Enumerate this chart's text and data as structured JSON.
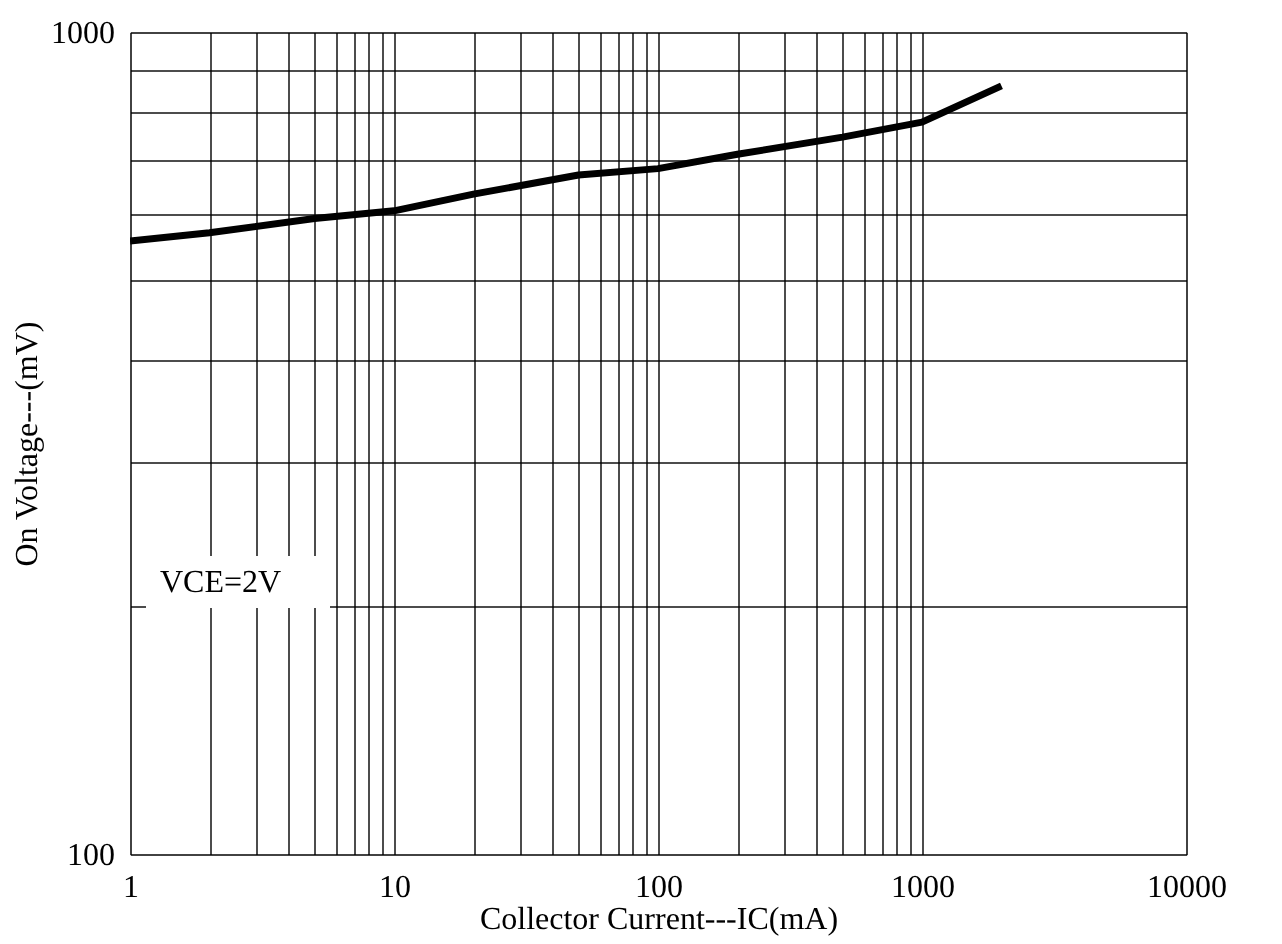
{
  "chart_data": {
    "type": "line",
    "xlabel": "Collector Current---IC(mA)",
    "ylabel": "On Voltage---(mV)",
    "log": "xy",
    "grid": true,
    "marker": "none",
    "line_style": "solid",
    "x": [
      1,
      2,
      5,
      10,
      20,
      50,
      100,
      200,
      500,
      1000,
      2000
    ],
    "series": [
      {
        "color": "#000000",
        "values": [
          557,
          570,
          593,
          606,
          635,
          670,
          682,
          710,
          745,
          777,
          860
        ]
      }
    ],
    "xlim": [
      1,
      10000
    ],
    "ylim": [
      100,
      1000
    ],
    "xticks": [
      1,
      {
        "value": 2,
        "label": null
      },
      {
        "value": 3,
        "label": null
      },
      {
        "value": 4,
        "label": null
      },
      {
        "value": 5,
        "label": null
      },
      {
        "value": 6,
        "label": null
      },
      {
        "value": 7,
        "label": null
      },
      {
        "value": 8,
        "label": null
      },
      {
        "value": 9,
        "label": null
      },
      10,
      {
        "value": 20,
        "label": null
      },
      {
        "value": 30,
        "label": null
      },
      {
        "value": 40,
        "label": null
      },
      {
        "value": 50,
        "label": null
      },
      {
        "value": 60,
        "label": null
      },
      {
        "value": 70,
        "label": null
      },
      {
        "value": 80,
        "label": null
      },
      {
        "value": 90,
        "label": null
      },
      100,
      {
        "value": 200,
        "label": null
      },
      {
        "value": 300,
        "label": null
      },
      {
        "value": 400,
        "label": null
      },
      {
        "value": 500,
        "label": null
      },
      {
        "value": 600,
        "label": null
      },
      {
        "value": 700,
        "label": null
      },
      {
        "value": 800,
        "label": null
      },
      {
        "value": 900,
        "label": null
      },
      1000,
      10000
    ],
    "yticks": [
      100,
      {
        "value": 200,
        "label": null
      },
      {
        "value": 300,
        "label": null
      },
      {
        "value": 400,
        "label": null
      },
      {
        "value": 500,
        "label": null
      },
      {
        "value": 600,
        "label": null
      },
      {
        "value": 700,
        "label": null
      },
      {
        "value": 800,
        "label": null
      },
      {
        "value": 900,
        "label": null
      },
      1000
    ],
    "annotations": [
      "VCE=2V"
    ]
  }
}
